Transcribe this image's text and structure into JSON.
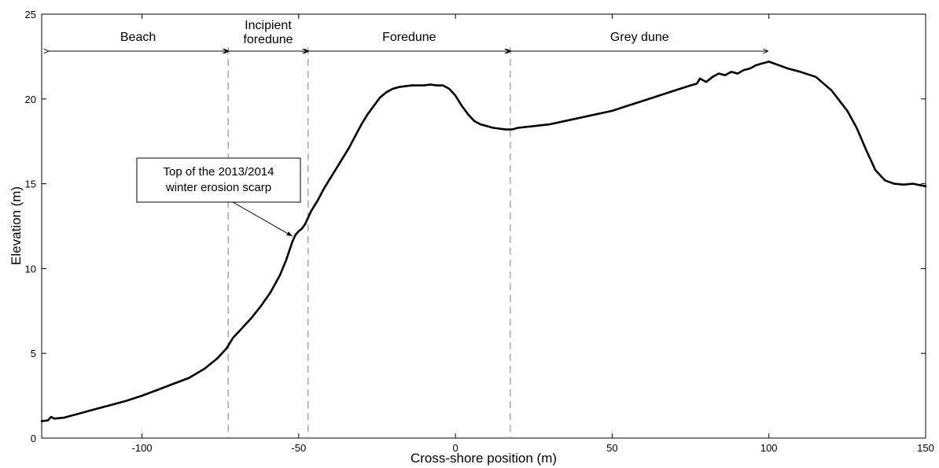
{
  "chart_data": {
    "type": "line",
    "title": "",
    "xlabel": "Cross-shore position (m)",
    "ylabel": "Elevation (m)",
    "xlim": [
      -132,
      150
    ],
    "ylim": [
      0,
      25
    ],
    "xticks": [
      -100,
      -50,
      0,
      50,
      100,
      150
    ],
    "yticks": [
      0,
      5,
      10,
      15,
      20,
      25
    ],
    "grid": false,
    "series": [
      {
        "color": "#000000",
        "x": [
          -132,
          -130,
          -129,
          -128,
          -125,
          -120,
          -115,
          -110,
          -105,
          -100,
          -95,
          -90,
          -85,
          -80,
          -76,
          -73,
          -71,
          -68,
          -65,
          -62,
          -59,
          -56,
          -54,
          -52,
          -51,
          -50,
          -49,
          -48,
          -47,
          -46,
          -44,
          -42,
          -40,
          -38,
          -36,
          -34,
          -32,
          -30,
          -28,
          -26,
          -24,
          -22,
          -20,
          -18,
          -16,
          -14,
          -12,
          -10,
          -8,
          -6,
          -4,
          -2,
          0,
          2,
          4,
          6,
          8,
          10,
          12,
          14,
          16,
          18,
          20,
          25,
          30,
          35,
          40,
          45,
          50,
          55,
          60,
          65,
          70,
          75,
          77,
          78,
          80,
          82,
          84,
          86,
          88,
          90,
          92,
          94,
          96,
          98,
          100,
          103,
          106,
          110,
          115,
          120,
          125,
          128,
          131,
          134,
          137,
          140,
          143,
          146,
          150
        ],
        "y": [
          1.0,
          1.05,
          1.25,
          1.15,
          1.2,
          1.45,
          1.7,
          1.95,
          2.2,
          2.5,
          2.85,
          3.2,
          3.55,
          4.1,
          4.7,
          5.3,
          5.9,
          6.5,
          7.1,
          7.8,
          8.6,
          9.6,
          10.5,
          11.6,
          12.0,
          12.2,
          12.35,
          12.6,
          13.0,
          13.4,
          14.0,
          14.7,
          15.3,
          15.9,
          16.5,
          17.1,
          17.8,
          18.5,
          19.1,
          19.6,
          20.1,
          20.4,
          20.6,
          20.7,
          20.75,
          20.8,
          20.8,
          20.8,
          20.85,
          20.8,
          20.8,
          20.6,
          20.2,
          19.6,
          19.1,
          18.7,
          18.5,
          18.4,
          18.3,
          18.25,
          18.2,
          18.2,
          18.3,
          18.4,
          18.5,
          18.7,
          18.9,
          19.1,
          19.3,
          19.6,
          19.9,
          20.2,
          20.5,
          20.8,
          20.9,
          21.2,
          21.0,
          21.3,
          21.5,
          21.4,
          21.6,
          21.5,
          21.7,
          21.8,
          22.0,
          22.1,
          22.2,
          22.0,
          21.8,
          21.6,
          21.3,
          20.5,
          19.3,
          18.3,
          17.0,
          15.8,
          15.2,
          15.0,
          14.95,
          15.0,
          14.85
        ]
      }
    ],
    "boundaries": [
      -72.5,
      -47,
      17.5
    ],
    "zones": [
      {
        "lines": [
          "Beach"
        ],
        "from": -130,
        "to": -72.5
      },
      {
        "lines": [
          "Incipient",
          "foredune"
        ],
        "from": -72.5,
        "to": -47
      },
      {
        "lines": [
          "Foredune"
        ],
        "from": -47,
        "to": 17.5
      },
      {
        "lines": [
          "Grey dune"
        ],
        "from": 17.5,
        "to": 100
      }
    ],
    "annotation": {
      "lines": [
        "Top of the 2013/2014",
        "winter erosion scarp"
      ],
      "target_x": -51,
      "target_y": 12.0
    }
  }
}
